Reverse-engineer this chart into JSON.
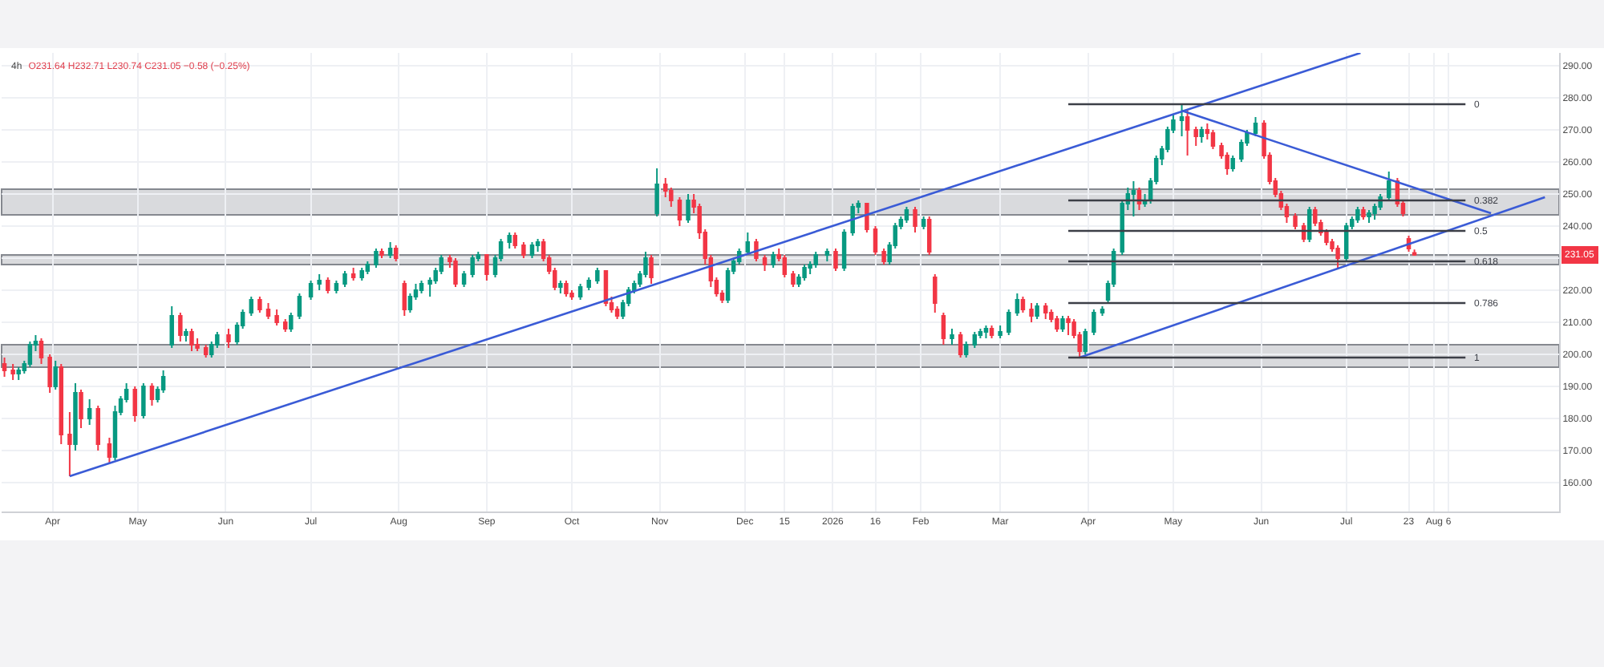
{
  "chart_data": {
    "type": "candlestick",
    "title": "4h",
    "subtitle": "O231.64 H232.71 L230.74 C231.05 −0.58 (−0.25%)",
    "x": [
      "2025-03-15",
      "2025-03-18",
      "2025-03-20",
      "2025-03-22",
      "2025-03-24",
      "2025-03-26",
      "2025-03-28",
      "2025-03-31",
      "2025-04-02",
      "2025-04-04",
      "2025-04-07",
      "2025-04-09",
      "2025-04-11",
      "2025-04-14",
      "2025-04-17",
      "2025-04-21",
      "2025-04-23",
      "2025-04-25",
      "2025-04-27",
      "2025-04-30",
      "2025-05-03",
      "2025-05-06",
      "2025-05-08",
      "2025-05-10",
      "2025-05-13",
      "2025-05-16",
      "2025-05-18",
      "2025-05-20",
      "2025-05-22",
      "2025-05-25",
      "2025-05-27",
      "2025-05-29",
      "2025-06-02",
      "2025-06-05",
      "2025-06-07",
      "2025-06-10",
      "2025-06-13",
      "2025-06-16",
      "2025-06-19",
      "2025-06-22",
      "2025-06-24",
      "2025-06-27",
      "2025-07-01",
      "2025-07-04",
      "2025-07-07",
      "2025-07-10",
      "2025-07-13",
      "2025-07-16",
      "2025-07-19",
      "2025-07-21",
      "2025-07-24",
      "2025-07-26",
      "2025-07-29",
      "2025-07-31",
      "2025-08-03",
      "2025-08-05",
      "2025-08-07",
      "2025-08-09",
      "2025-08-12",
      "2025-08-14",
      "2025-08-16",
      "2025-08-19",
      "2025-08-21",
      "2025-08-24",
      "2025-08-27",
      "2025-08-29",
      "2025-09-01",
      "2025-09-04",
      "2025-09-06",
      "2025-09-09",
      "2025-09-11",
      "2025-09-14",
      "2025-09-17",
      "2025-09-19",
      "2025-09-21",
      "2025-09-23",
      "2025-09-25",
      "2025-09-27",
      "2025-09-29",
      "2025-10-01",
      "2025-10-04",
      "2025-10-07",
      "2025-10-10",
      "2025-10-13",
      "2025-10-15",
      "2025-10-17",
      "2025-10-19",
      "2025-10-21",
      "2025-10-23",
      "2025-10-25",
      "2025-10-27",
      "2025-10-29",
      "2025-10-31",
      "2025-11-03",
      "2025-11-05",
      "2025-11-08",
      "2025-11-11",
      "2025-11-13",
      "2025-11-15",
      "2025-11-17",
      "2025-11-19",
      "2025-11-21",
      "2025-11-23",
      "2025-11-25",
      "2025-11-27",
      "2025-11-29",
      "2025-12-02",
      "2025-12-05",
      "2025-12-08",
      "2025-12-11",
      "2025-12-13",
      "2025-12-15",
      "2025-12-18",
      "2025-12-20",
      "2025-12-22",
      "2025-12-24",
      "2025-12-26",
      "2025-12-30",
      "2026-01-02",
      "2026-01-05",
      "2026-01-08",
      "2026-01-10",
      "2026-01-13",
      "2026-01-16",
      "2026-01-19",
      "2026-01-21",
      "2026-01-23",
      "2026-01-25",
      "2026-01-27",
      "2026-01-30",
      "2026-02-02",
      "2026-02-04",
      "2026-02-06",
      "2026-02-09",
      "2026-02-12",
      "2026-02-15",
      "2026-02-17",
      "2026-02-20",
      "2026-02-22",
      "2026-02-24",
      "2026-02-26",
      "2026-03-01",
      "2026-03-04",
      "2026-03-07",
      "2026-03-09",
      "2026-03-12",
      "2026-03-14",
      "2026-03-17",
      "2026-03-19",
      "2026-03-21",
      "2026-03-23",
      "2026-03-25",
      "2026-03-27",
      "2026-03-29",
      "2026-03-31",
      "2026-04-03",
      "2026-04-06",
      "2026-04-08",
      "2026-04-10",
      "2026-04-13",
      "2026-04-15",
      "2026-04-17",
      "2026-04-19",
      "2026-04-21",
      "2026-04-23",
      "2026-04-25",
      "2026-04-27",
      "2026-04-29",
      "2026-05-01",
      "2026-05-04",
      "2026-05-06",
      "2026-05-09",
      "2026-05-11",
      "2026-05-13",
      "2026-05-15",
      "2026-05-18",
      "2026-05-20",
      "2026-05-22",
      "2026-05-25",
      "2026-05-27",
      "2026-05-30",
      "2026-06-02",
      "2026-06-04",
      "2026-06-06",
      "2026-06-08",
      "2026-06-10",
      "2026-06-13",
      "2026-06-16",
      "2026-06-18",
      "2026-06-20",
      "2026-06-22",
      "2026-06-24",
      "2026-06-26",
      "2026-06-28",
      "2026-07-01",
      "2026-07-03",
      "2026-07-05",
      "2026-07-07",
      "2026-07-09",
      "2026-07-11",
      "2026-07-13",
      "2026-07-16",
      "2026-07-19",
      "2026-07-21",
      "2026-07-23",
      "2026-07-25"
    ],
    "ohlc": [
      [
        197,
        199,
        193,
        195
      ],
      [
        195,
        197,
        192,
        194
      ],
      [
        194,
        196,
        192,
        195
      ],
      [
        195,
        198,
        194,
        197
      ],
      [
        197,
        204,
        196,
        203
      ],
      [
        203,
        206,
        201,
        204
      ],
      [
        204,
        205,
        197,
        199
      ],
      [
        199,
        200,
        188,
        190
      ],
      [
        190,
        198,
        189,
        196
      ],
      [
        196,
        197,
        172,
        175
      ],
      [
        175,
        182,
        162,
        172
      ],
      [
        172,
        191,
        170,
        188
      ],
      [
        188,
        189,
        177,
        180
      ],
      [
        180,
        186,
        178,
        183
      ],
      [
        183,
        184,
        170,
        172
      ],
      [
        172,
        174,
        166,
        168
      ],
      [
        168,
        184,
        167,
        182
      ],
      [
        182,
        187,
        181,
        186
      ],
      [
        186,
        191,
        185,
        189
      ],
      [
        189,
        190,
        179,
        181
      ],
      [
        181,
        191,
        180,
        190
      ],
      [
        190,
        191,
        184,
        186
      ],
      [
        186,
        190,
        185,
        189
      ],
      [
        189,
        195,
        188,
        193
      ],
      [
        203,
        215,
        202,
        212
      ],
      [
        212,
        213,
        204,
        206
      ],
      [
        206,
        208,
        204,
        207
      ],
      [
        207,
        208,
        201,
        203
      ],
      [
        203,
        205,
        201,
        202
      ],
      [
        202,
        203,
        199,
        200
      ],
      [
        200,
        204,
        199,
        203
      ],
      [
        203,
        207,
        202,
        206
      ],
      [
        206,
        208,
        202,
        204
      ],
      [
        204,
        210,
        203,
        209
      ],
      [
        209,
        214,
        208,
        213
      ],
      [
        213,
        218,
        212,
        217
      ],
      [
        217,
        218,
        213,
        214
      ],
      [
        214,
        216,
        211,
        212
      ],
      [
        212,
        214,
        209,
        210
      ],
      [
        210,
        211,
        207,
        208
      ],
      [
        208,
        213,
        207,
        212
      ],
      [
        212,
        219,
        211,
        218
      ],
      [
        218,
        223,
        217,
        222
      ],
      [
        222,
        225,
        220,
        223
      ],
      [
        223,
        224,
        219,
        220
      ],
      [
        220,
        223,
        219,
        222
      ],
      [
        222,
        226,
        221,
        225
      ],
      [
        225,
        227,
        223,
        224
      ],
      [
        224,
        227,
        223,
        226
      ],
      [
        226,
        229,
        225,
        228
      ],
      [
        228,
        233,
        227,
        232
      ],
      [
        232,
        233,
        230,
        231
      ],
      [
        231,
        235,
        230,
        233
      ],
      [
        233,
        234,
        229,
        230
      ],
      [
        222,
        223,
        212,
        214
      ],
      [
        214,
        219,
        213,
        218
      ],
      [
        218,
        222,
        217,
        220
      ],
      [
        220,
        223,
        219,
        222
      ],
      [
        222,
        224,
        218,
        223
      ],
      [
        223,
        227,
        222,
        226
      ],
      [
        226,
        231,
        225,
        230
      ],
      [
        230,
        231,
        227,
        229
      ],
      [
        229,
        230,
        221,
        222
      ],
      [
        222,
        226,
        221,
        225
      ],
      [
        225,
        231,
        224,
        230
      ],
      [
        230,
        232,
        229,
        231
      ],
      [
        231,
        231,
        223,
        225
      ],
      [
        225,
        231,
        224,
        230
      ],
      [
        230,
        236,
        229,
        235
      ],
      [
        235,
        238,
        233,
        237
      ],
      [
        237,
        238,
        233,
        234
      ],
      [
        234,
        235,
        230,
        231
      ],
      [
        231,
        235,
        230,
        234
      ],
      [
        234,
        236,
        232,
        235
      ],
      [
        235,
        236,
        229,
        230
      ],
      [
        230,
        231,
        225,
        226
      ],
      [
        226,
        227,
        220,
        221
      ],
      [
        221,
        223,
        219,
        222
      ],
      [
        222,
        223,
        218,
        219
      ],
      [
        219,
        220,
        217,
        218
      ],
      [
        218,
        222,
        217,
        221
      ],
      [
        221,
        224,
        220,
        223
      ],
      [
        223,
        227,
        222,
        226
      ],
      [
        226,
        226,
        215,
        216
      ],
      [
        216,
        218,
        213,
        214
      ],
      [
        214,
        215,
        211,
        212
      ],
      [
        212,
        217,
        211,
        216
      ],
      [
        216,
        221,
        215,
        220
      ],
      [
        220,
        223,
        219,
        222
      ],
      [
        222,
        226,
        221,
        225
      ],
      [
        225,
        232,
        224,
        230
      ],
      [
        230,
        231,
        222,
        224
      ],
      [
        244,
        258,
        243,
        253
      ],
      [
        253,
        255,
        249,
        251
      ],
      [
        251,
        252,
        246,
        248
      ],
      [
        248,
        249,
        240,
        242
      ],
      [
        242,
        250,
        241,
        248
      ],
      [
        248,
        250,
        244,
        246
      ],
      [
        246,
        247,
        236,
        238
      ],
      [
        238,
        239,
        228,
        230
      ],
      [
        230,
        231,
        221,
        223
      ],
      [
        223,
        224,
        218,
        219
      ],
      [
        219,
        220,
        216,
        217
      ],
      [
        217,
        227,
        216,
        226
      ],
      [
        226,
        230,
        225,
        229
      ],
      [
        229,
        233,
        228,
        232
      ],
      [
        232,
        238,
        231,
        235
      ],
      [
        235,
        236,
        229,
        230
      ],
      [
        230,
        231,
        226,
        228
      ],
      [
        228,
        232,
        227,
        231
      ],
      [
        231,
        233,
        229,
        230
      ],
      [
        230,
        231,
        224,
        225
      ],
      [
        225,
        226,
        221,
        222
      ],
      [
        222,
        225,
        221,
        224
      ],
      [
        224,
        228,
        223,
        227
      ],
      [
        227,
        229,
        225,
        228
      ],
      [
        228,
        232,
        227,
        231
      ],
      [
        231,
        233,
        229,
        232
      ],
      [
        232,
        233,
        226,
        227
      ],
      [
        227,
        239,
        226,
        238
      ],
      [
        238,
        247,
        237,
        246
      ],
      [
        246,
        248,
        244,
        247
      ],
      [
        247,
        247,
        238,
        239
      ],
      [
        239,
        240,
        231,
        232
      ],
      [
        232,
        233,
        228,
        229
      ],
      [
        229,
        235,
        228,
        234
      ],
      [
        234,
        241,
        233,
        240
      ],
      [
        240,
        243,
        239,
        242
      ],
      [
        242,
        246,
        241,
        245
      ],
      [
        245,
        246,
        238,
        240
      ],
      [
        240,
        243,
        239,
        242
      ],
      [
        242,
        243,
        231,
        232
      ],
      [
        224,
        225,
        213,
        216
      ],
      [
        212,
        213,
        203,
        205
      ],
      [
        205,
        208,
        203,
        206
      ],
      [
        206,
        207,
        199,
        200
      ],
      [
        200,
        204,
        199,
        203
      ],
      [
        203,
        207,
        202,
        206
      ],
      [
        206,
        208,
        205,
        207
      ],
      [
        207,
        209,
        205,
        208
      ],
      [
        208,
        209,
        205,
        206
      ],
      [
        206,
        209,
        205,
        207
      ],
      [
        207,
        214,
        206,
        213
      ],
      [
        213,
        219,
        212,
        217
      ],
      [
        217,
        218,
        213,
        214
      ],
      [
        214,
        216,
        210,
        212
      ],
      [
        212,
        216,
        211,
        215
      ],
      [
        215,
        216,
        211,
        213
      ],
      [
        213,
        214,
        210,
        211
      ],
      [
        211,
        212,
        207,
        208
      ],
      [
        208,
        212,
        207,
        211
      ],
      [
        211,
        212,
        206,
        210
      ],
      [
        210,
        211,
        205,
        206
      ],
      [
        206,
        207,
        199,
        201
      ],
      [
        201,
        208,
        200,
        207
      ],
      [
        207,
        214,
        206,
        213
      ],
      [
        213,
        215,
        212,
        214
      ],
      [
        217,
        223,
        216,
        222
      ],
      [
        222,
        233,
        221,
        232
      ],
      [
        232,
        248,
        231,
        247
      ],
      [
        247,
        252,
        245,
        250
      ],
      [
        250,
        254,
        243,
        251
      ],
      [
        251,
        252,
        245,
        247
      ],
      [
        247,
        250,
        246,
        248
      ],
      [
        248,
        255,
        247,
        254
      ],
      [
        254,
        262,
        253,
        261
      ],
      [
        261,
        265,
        259,
        264
      ],
      [
        264,
        271,
        263,
        270
      ],
      [
        270,
        275,
        269,
        273
      ],
      [
        273,
        278,
        268,
        274
      ],
      [
        274,
        276,
        262,
        270
      ],
      [
        270,
        271,
        265,
        268
      ],
      [
        268,
        271,
        266,
        270
      ],
      [
        270,
        272,
        267,
        269
      ],
      [
        269,
        270,
        264,
        265
      ],
      [
        265,
        266,
        261,
        262
      ],
      [
        262,
        263,
        256,
        258
      ],
      [
        258,
        262,
        257,
        261
      ],
      [
        261,
        267,
        260,
        266
      ],
      [
        266,
        270,
        265,
        269
      ],
      [
        269,
        274,
        268,
        272
      ],
      [
        272,
        273,
        261,
        262
      ],
      [
        262,
        263,
        253,
        254
      ],
      [
        254,
        255,
        249,
        250
      ],
      [
        250,
        251,
        245,
        246
      ],
      [
        246,
        247,
        241,
        243
      ],
      [
        243,
        244,
        239,
        240
      ],
      [
        240,
        241,
        235,
        236
      ],
      [
        236,
        246,
        235,
        245
      ],
      [
        245,
        246,
        240,
        241
      ],
      [
        241,
        242,
        237,
        238
      ],
      [
        238,
        239,
        234,
        235
      ],
      [
        235,
        236,
        232,
        233
      ],
      [
        233,
        234,
        227,
        230
      ],
      [
        230,
        241,
        229,
        240
      ],
      [
        240,
        243,
        239,
        242
      ],
      [
        242,
        246,
        241,
        245
      ],
      [
        245,
        246,
        242,
        243
      ],
      [
        243,
        245,
        241,
        244
      ],
      [
        244,
        247,
        242,
        246
      ],
      [
        246,
        250,
        245,
        249
      ],
      [
        249,
        257,
        248,
        254
      ],
      [
        254,
        255,
        246,
        247
      ],
      [
        247,
        248,
        243,
        244
      ],
      [
        236,
        237,
        232,
        233
      ],
      [
        231.64,
        232.71,
        230.74,
        231.05
      ]
    ],
    "series": [
      {
        "type": "line",
        "color": "#3a5bd6",
        "x": [
          "2025-04-07",
          "2026-07-06"
        ],
        "values": [
          162,
          294
        ]
      },
      {
        "type": "line",
        "color": "#3a5bd6",
        "x": [
          "2026-05-04",
          "2026-08-21"
        ],
        "values": [
          276,
          244
        ]
      },
      {
        "type": "line",
        "color": "#3a5bd6",
        "x": [
          "2026-03-29",
          "2026-09-09"
        ],
        "values": [
          199,
          249
        ]
      },
      {
        "type": "line",
        "name": "0",
        "color": "#3c3f47",
        "x": [
          "2026-03-25",
          "2026-08-12"
        ],
        "values": [
          278,
          278
        ]
      },
      {
        "type": "line",
        "name": "0.382",
        "color": "#3c3f47",
        "x": [
          "2026-03-25",
          "2026-08-12"
        ],
        "values": [
          248,
          248
        ]
      },
      {
        "type": "line",
        "name": "0.5",
        "color": "#3c3f47",
        "x": [
          "2026-03-25",
          "2026-08-12"
        ],
        "values": [
          238.5,
          238.5
        ]
      },
      {
        "type": "line",
        "name": "0.618",
        "color": "#3c3f47",
        "x": [
          "2026-03-25",
          "2026-08-12"
        ],
        "values": [
          229,
          229
        ]
      },
      {
        "type": "line",
        "name": "0.786",
        "color": "#3c3f47",
        "x": [
          "2026-03-25",
          "2026-08-12"
        ],
        "values": [
          216,
          216
        ]
      },
      {
        "type": "line",
        "name": "1",
        "color": "#3c3f47",
        "x": [
          "2026-03-25",
          "2026-08-12"
        ],
        "values": [
          199,
          199
        ]
      }
    ],
    "bands": [
      {
        "axis": "y",
        "from": 243.5,
        "to": 251.5,
        "color": "#d9dadd"
      },
      {
        "axis": "y",
        "from": 228,
        "to": 231,
        "color": "#d9dadd"
      },
      {
        "axis": "y",
        "from": 196,
        "to": 203,
        "color": "#d9dadd"
      }
    ],
    "annotations": [
      {
        "text": "231.05",
        "y": 231.05
      }
    ],
    "xlim": [
      "2025-03-14",
      "2026-09-14"
    ],
    "xticks": [
      {
        "value": "2025-04-01",
        "label": "Apr"
      },
      {
        "value": "2025-05-01",
        "label": "May"
      },
      {
        "value": "2025-06-01",
        "label": "Jun"
      },
      {
        "value": "2025-07-01",
        "label": "Jul"
      },
      {
        "value": "2025-08-01",
        "label": "Aug"
      },
      {
        "value": "2025-09-01",
        "label": "Sep"
      },
      {
        "value": "2025-10-01",
        "label": "Oct"
      },
      {
        "value": "2025-11-01",
        "label": "Nov"
      },
      {
        "value": "2025-12-01",
        "label": "Dec"
      },
      {
        "value": "2025-12-15",
        "label": "15"
      },
      {
        "value": "2026-01-01",
        "label": "2026"
      },
      {
        "value": "2026-01-16",
        "label": "16"
      },
      {
        "value": "2026-02-01",
        "label": "Feb"
      },
      {
        "value": "2026-03-01",
        "label": "Mar"
      },
      {
        "value": "2026-04-01",
        "label": "Apr"
      },
      {
        "value": "2026-05-01",
        "label": "May"
      },
      {
        "value": "2026-06-01",
        "label": "Jun"
      },
      {
        "value": "2026-07-01",
        "label": "Jul"
      },
      {
        "value": "2026-07-23",
        "label": "23"
      },
      {
        "value": "2026-08-01",
        "label": "Aug"
      },
      {
        "value": "2026-08-06",
        "label": "6"
      }
    ],
    "ylim": [
      151,
      294
    ],
    "yticks": [
      {
        "value": 160,
        "label": "160.00"
      },
      {
        "value": 170,
        "label": "170.00"
      },
      {
        "value": 180,
        "label": "180.00"
      },
      {
        "value": 190,
        "label": "190.00"
      },
      {
        "value": 200,
        "label": "200.00"
      },
      {
        "value": 210,
        "label": "210.00"
      },
      {
        "value": 220,
        "label": "220.00"
      },
      {
        "value": 230,
        "label": null
      },
      {
        "value": 240,
        "label": "240.00"
      },
      {
        "value": 250,
        "label": "250.00"
      },
      {
        "value": 260,
        "label": "260.00"
      },
      {
        "value": 270,
        "label": "270.00"
      },
      {
        "value": 280,
        "label": "280.00"
      },
      {
        "value": 290,
        "label": "290.00"
      }
    ],
    "grid": true,
    "legend": false
  }
}
